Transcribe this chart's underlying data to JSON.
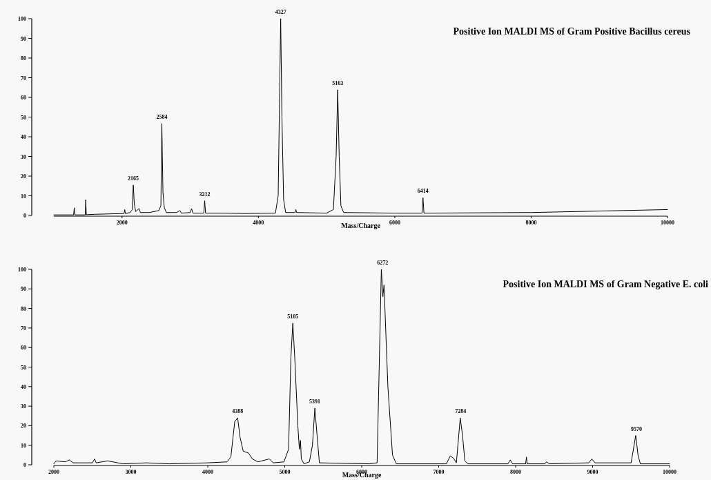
{
  "chart_data": [
    {
      "type": "line",
      "title": "Positive Ion MALDI MS of Gram Positive Bacillus cereus",
      "xlabel": "Mass/Charge",
      "color": "#000000",
      "x": [
        1000,
        1290,
        1300,
        1310,
        1460,
        1468,
        1476,
        1600,
        1800,
        2030,
        2040,
        2050,
        2120,
        2150,
        2165,
        2180,
        2200,
        2250,
        2270,
        2400,
        2540,
        2570,
        2584,
        2600,
        2620,
        2650,
        2800,
        2850,
        2870,
        3000,
        3020,
        3040,
        3200,
        3212,
        3225,
        3500,
        3800,
        4250,
        4290,
        4327,
        4345,
        4370,
        4400,
        4540,
        4550,
        4560,
        5000,
        5100,
        5140,
        5163,
        5185,
        5210,
        5250,
        6000,
        6400,
        6414,
        6428,
        8000,
        10000
      ],
      "values": [
        0.3,
        0.3,
        3.9,
        0.3,
        0.3,
        8,
        0.4,
        0.6,
        0.8,
        1,
        3,
        1,
        1.5,
        3,
        15.5,
        6,
        2,
        3.5,
        1.5,
        1.5,
        2.5,
        5,
        46.7,
        12,
        4,
        1.5,
        1.5,
        2.5,
        1.2,
        1.5,
        3.5,
        1.2,
        1.2,
        7.5,
        1.2,
        1.2,
        1,
        1.2,
        10,
        100,
        50,
        8,
        1.5,
        1.5,
        3,
        1.5,
        1.2,
        3,
        30,
        63.9,
        30,
        5,
        1.5,
        1.2,
        1.2,
        9,
        1.2,
        1.5,
        3
      ],
      "xlim": [
        1000,
        10000
      ],
      "xticks": [
        2000,
        4000,
        6000,
        8000,
        10000
      ],
      "ylim": [
        0,
        100
      ],
      "yticks": [
        0,
        10,
        20,
        30,
        40,
        50,
        60,
        70,
        80,
        90,
        100
      ],
      "annotations": [
        {
          "text": "2165",
          "x": 2165,
          "y": 15.5
        },
        {
          "text": "2584",
          "x": 2584,
          "y": 46.7
        },
        {
          "text": "3212",
          "x": 3212,
          "y": 7.5
        },
        {
          "text": "4327",
          "x": 4327,
          "y": 100
        },
        {
          "text": "5163",
          "x": 5163,
          "y": 63.9
        },
        {
          "text": "6414",
          "x": 6414,
          "y": 9
        }
      ]
    },
    {
      "type": "line",
      "title": "Positive Ion MALDI MS of Gram Negative E. coli",
      "xlabel": "Mass/Charge",
      "color": "#000000",
      "x": [
        2000,
        2030,
        2150,
        2200,
        2250,
        2500,
        2530,
        2550,
        2700,
        2900,
        3200,
        3500,
        4000,
        4250,
        4300,
        4350,
        4388,
        4420,
        4460,
        4530,
        4580,
        4650,
        4800,
        4850,
        4990,
        5050,
        5080,
        5105,
        5130,
        5170,
        5190,
        5205,
        5215,
        5250,
        5320,
        5360,
        5391,
        5420,
        5450,
        6100,
        6200,
        6255,
        6275,
        6290,
        6340,
        6400,
        6450,
        7100,
        7150,
        7190,
        7230,
        7280,
        7310,
        7340,
        7380,
        7900,
        7930,
        7960,
        8130,
        8140,
        8150,
        8380,
        8400,
        8440,
        8950,
        8990,
        9030,
        9500,
        9560,
        9590,
        9620,
        10000
      ],
      "values": [
        0.5,
        2,
        1.5,
        2.5,
        1,
        1,
        3,
        1,
        2,
        0.5,
        1,
        0.5,
        1,
        1.5,
        4,
        22,
        24,
        14,
        7,
        6,
        3,
        1.5,
        3,
        1,
        1.5,
        8,
        55,
        72.5,
        55,
        20,
        8,
        12.5,
        3,
        0.5,
        1.5,
        10,
        29,
        15,
        1,
        0.5,
        1,
        100,
        86,
        92,
        40,
        5,
        0.5,
        0.5,
        4.5,
        3.5,
        1,
        24,
        15,
        2,
        0.5,
        0.5,
        2.5,
        0.5,
        0.5,
        4,
        0.5,
        0.5,
        1.5,
        0.5,
        1,
        3,
        1,
        1,
        15,
        5,
        0.5,
        0.5
      ],
      "xlim": [
        2000,
        10000
      ],
      "xticks": [
        2000,
        3000,
        4000,
        5000,
        6000,
        7000,
        8000,
        9000,
        10000
      ],
      "ylim": [
        0,
        100
      ],
      "yticks": [
        0,
        10,
        20,
        30,
        40,
        50,
        60,
        70,
        80,
        90,
        100
      ],
      "annotations": [
        {
          "text": "4388",
          "x": 4388,
          "y": 24
        },
        {
          "text": "5105",
          "x": 5105,
          "y": 72.5
        },
        {
          "text": "5391",
          "x": 5391,
          "y": 29
        },
        {
          "text": "6272",
          "x": 6272,
          "y": 100
        },
        {
          "text": "7284",
          "x": 7284,
          "y": 24
        },
        {
          "text": "9570",
          "x": 9570,
          "y": 15
        }
      ]
    }
  ]
}
